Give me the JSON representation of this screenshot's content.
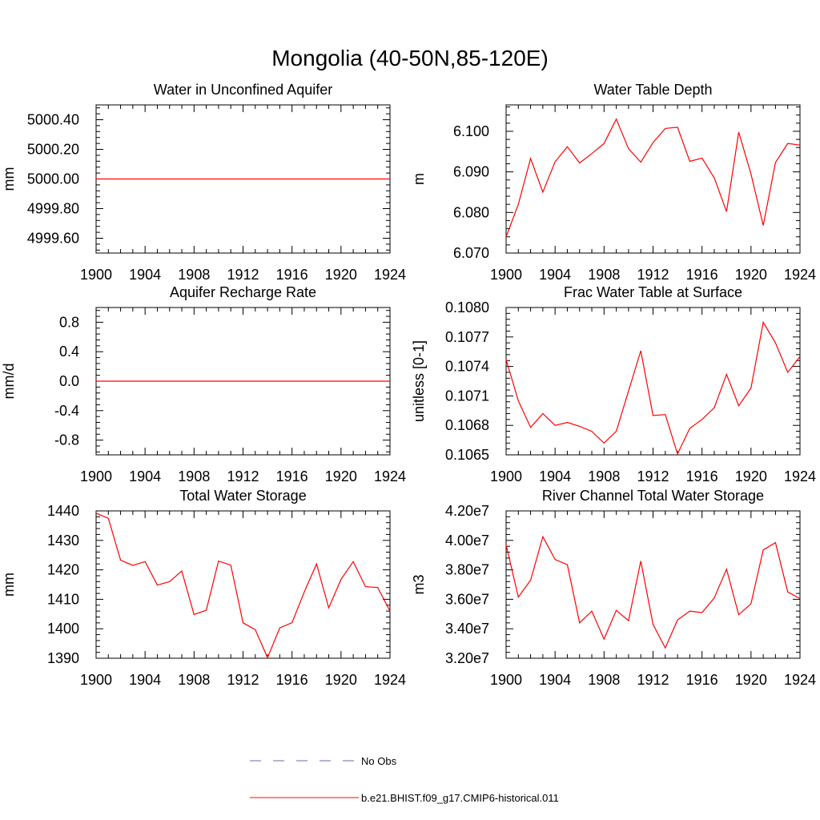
{
  "title": "Mongolia (40-50N,85-120E)",
  "legend": {
    "obs_label": "No Obs",
    "obs_color": "#6b6bb0",
    "model_label": "b.e21.BHIST.f09_g17.CMIP6-historical.011",
    "model_color": "#ff0000"
  },
  "chart_data": [
    {
      "type": "line",
      "title": "Water in Unconfined Aquifer",
      "ylabel": "mm",
      "xlim": [
        1900,
        1924
      ],
      "ylim": [
        4999.5,
        5000.5
      ],
      "xticks": [
        "1900",
        "1904",
        "1908",
        "1912",
        "1916",
        "1920",
        "1924"
      ],
      "yticks": [
        "4999.60",
        "4999.80",
        "5000.00",
        "5000.20",
        "5000.40"
      ],
      "series": [
        {
          "color": "#ff0000",
          "x": [
            1900,
            1924
          ],
          "y": [
            5000.0,
            5000.0
          ]
        }
      ]
    },
    {
      "type": "line",
      "title": "Water Table Depth",
      "ylabel": "m",
      "xlim": [
        1900,
        1924
      ],
      "ylim": [
        6.07,
        6.1065
      ],
      "xticks": [
        "1900",
        "1904",
        "1908",
        "1912",
        "1916",
        "1920",
        "1924"
      ],
      "yticks": [
        "6.070",
        "6.080",
        "6.090",
        "6.100"
      ],
      "series": [
        {
          "color": "#ff0000",
          "x": [
            1900,
            1901,
            1902,
            1903,
            1904,
            1905,
            1906,
            1907,
            1908,
            1909,
            1910,
            1911,
            1912,
            1913,
            1914,
            1915,
            1916,
            1917,
            1918,
            1919,
            1920,
            1921,
            1922,
            1923,
            1924
          ],
          "y": [
            6.074,
            6.082,
            6.0933,
            6.085,
            6.0925,
            6.0962,
            6.0922,
            6.0945,
            6.097,
            6.103,
            6.0957,
            6.0924,
            6.0972,
            6.1007,
            6.101,
            6.0926,
            6.0934,
            6.0885,
            6.0802,
            6.0998,
            6.0895,
            6.0768,
            6.0923,
            6.097,
            6.0966
          ]
        }
      ]
    },
    {
      "type": "line",
      "title": "Aquifer Recharge Rate",
      "ylabel": "mm/d",
      "xlim": [
        1900,
        1924
      ],
      "ylim": [
        -1.0,
        1.0
      ],
      "xticks": [
        "1900",
        "1904",
        "1908",
        "1912",
        "1916",
        "1920",
        "1924"
      ],
      "yticks": [
        "-0.8",
        "-0.4",
        "0.0",
        "0.4",
        "0.8"
      ],
      "series": [
        {
          "color": "#ff0000",
          "x": [
            1900,
            1924
          ],
          "y": [
            0.0,
            0.0
          ]
        }
      ]
    },
    {
      "type": "line",
      "title": "Frac Water Table at Surface",
      "ylabel": "unitless [0-1]",
      "xlim": [
        1900,
        1924
      ],
      "ylim": [
        0.1065,
        0.108
      ],
      "xticks": [
        "1900",
        "1904",
        "1908",
        "1912",
        "1916",
        "1920",
        "1924"
      ],
      "yticks": [
        "0.1065",
        "0.1068",
        "0.1071",
        "0.1074",
        "0.1077",
        "0.1080"
      ],
      "series": [
        {
          "color": "#ff0000",
          "x": [
            1900,
            1901,
            1902,
            1903,
            1904,
            1905,
            1906,
            1907,
            1908,
            1909,
            1910,
            1911,
            1912,
            1913,
            1914,
            1915,
            1916,
            1917,
            1918,
            1919,
            1920,
            1921,
            1922,
            1923,
            1924
          ],
          "y": [
            0.10747,
            0.10705,
            0.10678,
            0.10692,
            0.1068,
            0.10683,
            0.10679,
            0.10674,
            0.10662,
            0.10674,
            0.10715,
            0.10756,
            0.1069,
            0.10691,
            0.10651,
            0.10677,
            0.10686,
            0.10698,
            0.10732,
            0.107,
            0.10718,
            0.10785,
            0.10764,
            0.10734,
            0.1075
          ]
        }
      ]
    },
    {
      "type": "line",
      "title": "Total Water Storage",
      "ylabel": "mm",
      "xlim": [
        1900,
        1924
      ],
      "ylim": [
        1390,
        1440
      ],
      "xticks": [
        "1900",
        "1904",
        "1908",
        "1912",
        "1916",
        "1920",
        "1924"
      ],
      "yticks": [
        "1390",
        "1400",
        "1410",
        "1420",
        "1430",
        "1440"
      ],
      "series": [
        {
          "color": "#ff0000",
          "x": [
            1900,
            1901,
            1902,
            1903,
            1904,
            1905,
            1906,
            1907,
            1908,
            1909,
            1910,
            1911,
            1912,
            1913,
            1914,
            1915,
            1916,
            1917,
            1918,
            1919,
            1920,
            1921,
            1922,
            1923,
            1924
          ],
          "y": [
            1439.2,
            1437.5,
            1423.3,
            1421.5,
            1422.8,
            1414.8,
            1416.0,
            1419.6,
            1404.8,
            1406.3,
            1423.0,
            1421.6,
            1402.0,
            1399.7,
            1390.2,
            1400.3,
            1402.1,
            1412.5,
            1422.0,
            1407.1,
            1416.7,
            1422.8,
            1414.3,
            1414.0,
            1406.0
          ]
        }
      ]
    },
    {
      "type": "line",
      "title": "River Channel Total Water Storage",
      "ylabel": "m3",
      "xlim": [
        1900,
        1924
      ],
      "ylim": [
        32000000,
        42000000
      ],
      "xticks": [
        "1900",
        "1904",
        "1908",
        "1912",
        "1916",
        "1920",
        "1924"
      ],
      "yticks": [
        "3.20e7",
        "3.40e7",
        "3.60e7",
        "3.80e7",
        "4.00e7",
        "4.20e7"
      ],
      "series": [
        {
          "color": "#ff0000",
          "x": [
            1900,
            1901,
            1902,
            1903,
            1904,
            1905,
            1906,
            1907,
            1908,
            1909,
            1910,
            1911,
            1912,
            1913,
            1914,
            1915,
            1916,
            1917,
            1918,
            1919,
            1920,
            1921,
            1922,
            1923,
            1924
          ],
          "y": [
            39700000,
            36150000,
            37300000,
            40250000,
            38700000,
            38350000,
            34400000,
            35200000,
            33300000,
            35250000,
            34550000,
            38600000,
            34300000,
            32700000,
            34600000,
            35200000,
            35100000,
            36100000,
            38050000,
            34950000,
            35700000,
            39350000,
            39850000,
            36500000,
            36050000
          ]
        }
      ]
    }
  ]
}
